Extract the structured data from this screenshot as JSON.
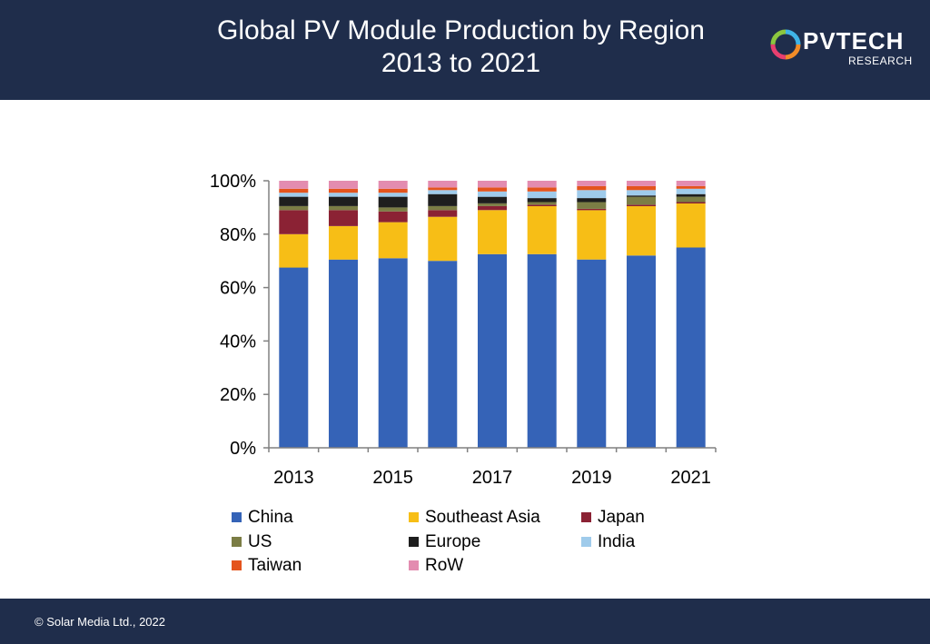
{
  "header": {
    "title_line1": "Global PV Module Production by Region",
    "title_line2": "2013 to 2021",
    "logo_text": "PVTECH",
    "logo_sub": "RESEARCH",
    "logo_icon": "pvtech-logo-icon"
  },
  "footer": {
    "copyright": "© Solar Media Ltd., 2022"
  },
  "chart_data": {
    "type": "bar",
    "stacked": true,
    "title": "Global PV Module Production by Region 2013 to 2021",
    "xlabel": "",
    "ylabel": "",
    "ylim": [
      0,
      100
    ],
    "yticks": [
      "0%",
      "20%",
      "40%",
      "60%",
      "80%",
      "100%"
    ],
    "xtick_labels": [
      "2013",
      "2015",
      "2017",
      "2019",
      "2021"
    ],
    "categories": [
      "2013",
      "2014",
      "2015",
      "2016",
      "2017",
      "2018",
      "2019",
      "2020",
      "2021"
    ],
    "legend_position": "bottom",
    "grid": false,
    "series": [
      {
        "name": "China",
        "color": "#3563b7",
        "values": [
          67.5,
          70.5,
          71,
          70,
          72.5,
          72.5,
          70.5,
          72,
          75
        ]
      },
      {
        "name": "Southeast Asia",
        "color": "#f7be16",
        "values": [
          12.5,
          12.5,
          13.5,
          16.5,
          16.5,
          18,
          18.5,
          18.5,
          16.5
        ]
      },
      {
        "name": "Japan",
        "color": "#8b2234",
        "values": [
          9,
          6,
          4,
          2.5,
          1.5,
          0.5,
          0.5,
          0.5,
          0.5
        ]
      },
      {
        "name": "US",
        "color": "#7b7d45",
        "values": [
          1.5,
          1.5,
          1.5,
          1.5,
          1,
          1,
          2.5,
          3,
          2
        ]
      },
      {
        "name": "Europe",
        "color": "#1e1e1e",
        "values": [
          3.5,
          3.5,
          4,
          4.5,
          2.5,
          1.5,
          1.5,
          0.5,
          1
        ]
      },
      {
        "name": "India",
        "color": "#9fcbeb",
        "values": [
          1.5,
          1.5,
          1.5,
          1.5,
          2,
          2.5,
          3,
          2,
          2
        ]
      },
      {
        "name": "Taiwan",
        "color": "#e4541d",
        "values": [
          1.5,
          1.5,
          1.5,
          1,
          1.5,
          1.5,
          1.5,
          1.5,
          1
        ]
      },
      {
        "name": "RoW",
        "color": "#e38cb0",
        "values": [
          3,
          3,
          3,
          2.5,
          2.5,
          2.5,
          2,
          2,
          2
        ]
      }
    ]
  }
}
